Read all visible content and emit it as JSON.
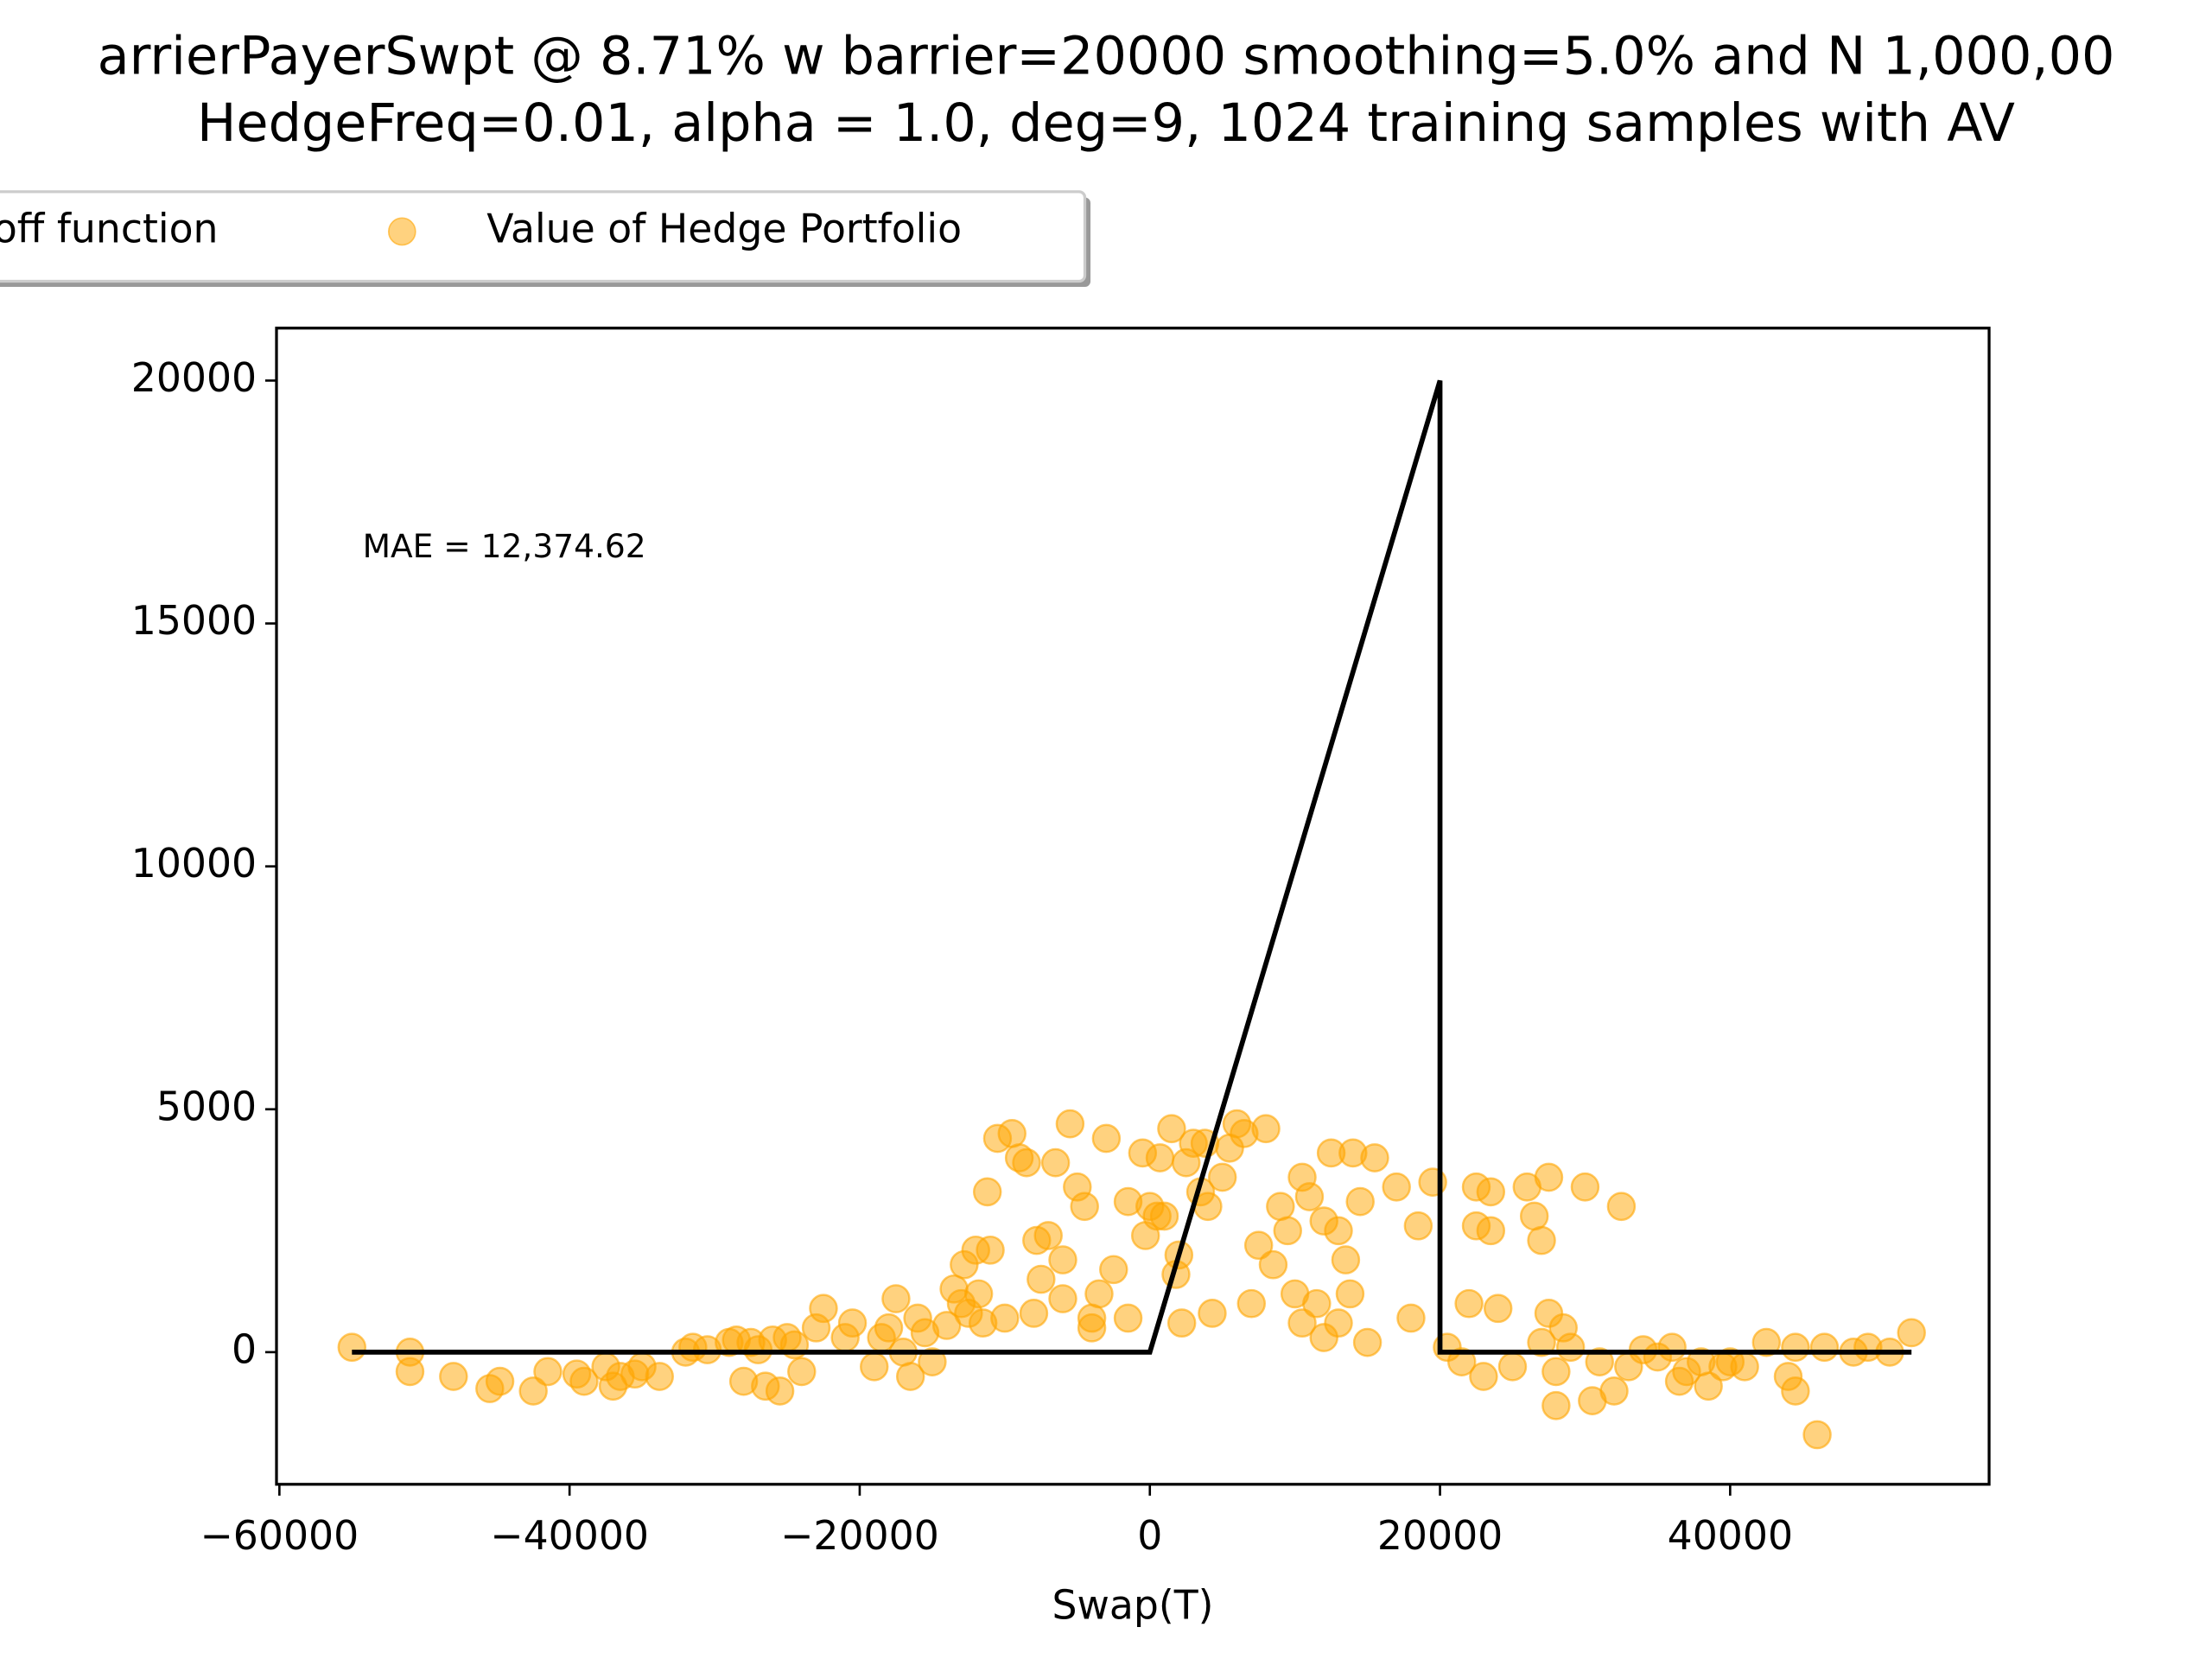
{
  "chart_data": {
    "type": "scatter",
    "title": "arrierPayerSwpt @ 8.71% w barrier=20000 smoothing=5.0% and N 1,000,00",
    "subtitle": "HedgeFreq=0.01, alpha = 1.0, deg=9, 1024 training samples with AV",
    "annotation": "MAE = 12,374.62",
    "x_label": "Swap(T)",
    "xlim": [
      -60200,
      57850
    ],
    "ylim": [
      -2720,
      21080
    ],
    "xticks": [
      {
        "value": -60000,
        "label": "−60000"
      },
      {
        "value": -40000,
        "label": "−40000"
      },
      {
        "value": -20000,
        "label": "−20000"
      },
      0,
      20000,
      40000
    ],
    "yticks": [
      0,
      5000,
      10000,
      15000,
      20000
    ],
    "series": [
      {
        "name": "off function",
        "type": "line",
        "color": "#000000",
        "x": [
          -55000,
          0,
          20000,
          20000,
          52500
        ],
        "values": [
          0,
          0,
          20000,
          0,
          0
        ]
      },
      {
        "name": "Value of Hedge Portfolio",
        "type": "scatter",
        "color": "#ffa500",
        "x": [
          -55000,
          -51000,
          -51000,
          -48000,
          -45500,
          -44800,
          -42500,
          -41500,
          -39500,
          -39000,
          -37500,
          -37000,
          -36500,
          -35500,
          -35000,
          -33800,
          -32000,
          -31500,
          -30500,
          -29000,
          -28500,
          -28000,
          -27500,
          -27000,
          -26500,
          -26000,
          -25500,
          -25000,
          -24500,
          -24000,
          -23000,
          -22500,
          -21000,
          -20500,
          -19000,
          -18500,
          -18000,
          -17500,
          -17000,
          -16500,
          -16000,
          -15500,
          -15000,
          -14000,
          -13500,
          -13000,
          -12800,
          -12500,
          -12000,
          -11800,
          -11500,
          -11200,
          -11000,
          -10500,
          -10000,
          -9500,
          -9000,
          -8500,
          -8000,
          -7800,
          -7500,
          -7000,
          -6500,
          -6000,
          -6000,
          -5500,
          -5000,
          -4500,
          -4000,
          -4000,
          -3500,
          -3000,
          -2500,
          -1500,
          -1500,
          -500,
          -300,
          0,
          500,
          700,
          1000,
          1500,
          1800,
          2000,
          2200,
          2500,
          3000,
          3500,
          3800,
          4000,
          4300,
          5000,
          5500,
          6000,
          6500,
          7000,
          7500,
          8000,
          8500,
          9000,
          9500,
          10000,
          10500,
          10500,
          11000,
          11500,
          12000,
          12000,
          12500,
          13000,
          13000,
          13500,
          13800,
          14000,
          14500,
          15000,
          15500,
          17000,
          18000,
          18500,
          19500,
          20500,
          21500,
          22000,
          22500,
          22500,
          23000,
          23500,
          23500,
          24000,
          25000,
          26000,
          26500,
          27000,
          27000,
          27500,
          27500,
          28000,
          28000,
          28500,
          29000,
          30000,
          30500,
          31000,
          32000,
          32500,
          33000,
          34000,
          35000,
          36000,
          36500,
          37000,
          38000,
          38500,
          39500,
          40000,
          41000,
          42500,
          44000,
          44500,
          44500,
          46000,
          46500,
          48500,
          49500,
          51000,
          52500
        ],
        "values": [
          100,
          0,
          -400,
          -500,
          -750,
          -600,
          -800,
          -400,
          -450,
          -600,
          -300,
          -700,
          -500,
          -450,
          -300,
          -500,
          0,
          100,
          50,
          200,
          250,
          -600,
          200,
          50,
          -700,
          250,
          -800,
          300,
          150,
          -400,
          500,
          900,
          300,
          600,
          -300,
          300,
          500,
          1100,
          0,
          -500,
          700,
          400,
          -200,
          550,
          1300,
          1000,
          1800,
          800,
          2100,
          1200,
          600,
          3300,
          2100,
          4400,
          700,
          4500,
          4000,
          3900,
          800,
          2300,
          1500,
          2400,
          3900,
          1900,
          1100,
          4700,
          3400,
          3000,
          500,
          700,
          1200,
          4400,
          1700,
          700,
          3100,
          4100,
          2400,
          3000,
          2800,
          4000,
          2800,
          4600,
          1600,
          2000,
          600,
          3900,
          4300,
          3300,
          4300,
          3000,
          800,
          3600,
          4200,
          4700,
          4500,
          1000,
          2200,
          4600,
          1800,
          3000,
          2500,
          1200,
          3600,
          600,
          3200,
          1000,
          300,
          2700,
          4100,
          2500,
          600,
          1900,
          1200,
          4100,
          3100,
          200,
          4000,
          3400,
          700,
          2600,
          3500,
          100,
          -200,
          1000,
          3400,
          2600,
          -500,
          3300,
          2500,
          900,
          -300,
          3400,
          2800,
          2300,
          200,
          3600,
          800,
          -1100,
          -400,
          500,
          100,
          3400,
          -1000,
          -200,
          -800,
          3000,
          -300,
          50,
          -100,
          100,
          -600,
          -400,
          -200,
          -700,
          -300,
          -200,
          -300,
          200,
          -500,
          -800,
          100,
          -1700,
          100,
          0,
          100,
          0,
          400
        ]
      }
    ]
  }
}
